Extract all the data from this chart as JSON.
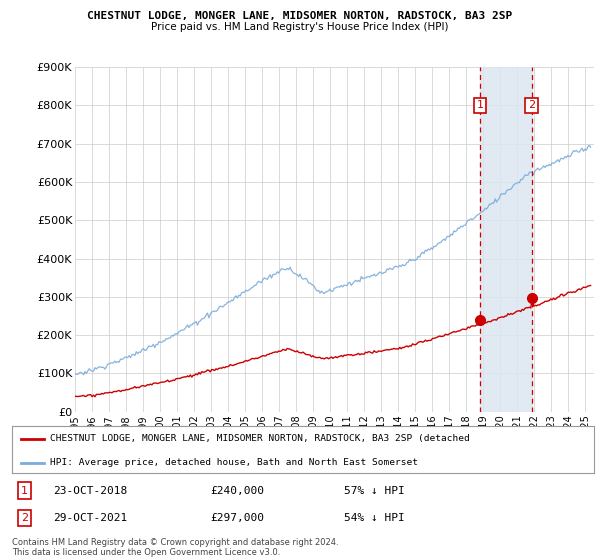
{
  "title1": "CHESTNUT LODGE, MONGER LANE, MIDSOMER NORTON, RADSTOCK, BA3 2SP",
  "title2": "Price paid vs. HM Land Registry's House Price Index (HPI)",
  "ylim": [
    0,
    900000
  ],
  "yticks": [
    0,
    100000,
    200000,
    300000,
    400000,
    500000,
    600000,
    700000,
    800000,
    900000
  ],
  "ytick_labels": [
    "£0",
    "£100K",
    "£200K",
    "£300K",
    "£400K",
    "£500K",
    "£600K",
    "£700K",
    "£800K",
    "£900K"
  ],
  "hpi_color": "#7aacdc",
  "price_color": "#cc0000",
  "bg_color": "#ffffff",
  "grid_color": "#cccccc",
  "sale1_date": 2018.81,
  "sale1_price": 240000,
  "sale2_date": 2021.83,
  "sale2_price": 297000,
  "shade_color": "#dce6f1",
  "legend_label_price": "CHESTNUT LODGE, MONGER LANE, MIDSOMER NORTON, RADSTOCK, BA3 2SP (detached",
  "legend_label_hpi": "HPI: Average price, detached house, Bath and North East Somerset",
  "footer": "Contains HM Land Registry data © Crown copyright and database right 2024.\nThis data is licensed under the Open Government Licence v3.0.",
  "xstart": 1995.0,
  "xend": 2025.5
}
